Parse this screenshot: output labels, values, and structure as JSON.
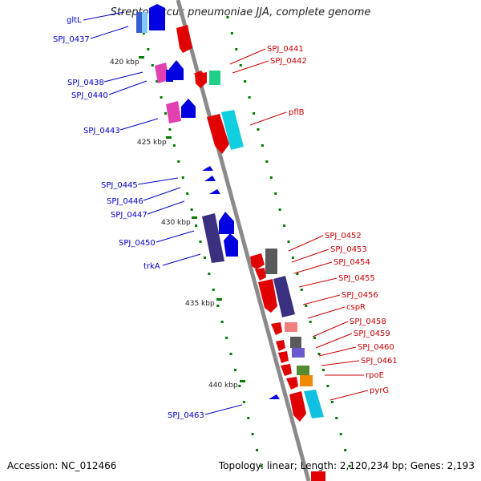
{
  "title": "Streptococcus pneumoniae JJA, complete genome",
  "footer": {
    "accession": "Accession: NC_012466",
    "summary": "Topology: linear; Length: 2,120,234 bp; Genes: 2,193"
  },
  "colors": {
    "left_label": "#0000cc",
    "right_label": "#cc0000",
    "tick": "#007a00",
    "backbone": "#888888"
  },
  "scale_labels": [
    "420 kbp",
    "425 kbp",
    "430 kbp",
    "435 kbp",
    "440 kbp"
  ],
  "left_labels": [
    "gltL",
    "SPJ_0437",
    "SPJ_0438",
    "SPJ_0440",
    "SPJ_0443",
    "SPJ_0445",
    "SPJ_0446",
    "SPJ_0447",
    "SPJ_0450",
    "trkA",
    "SPJ_0463"
  ],
  "right_labels": [
    "SPJ_0441",
    "SPJ_0442",
    "pflB",
    "SPJ_0452",
    "SPJ_0453",
    "SPJ_0454",
    "SPJ_0455",
    "SPJ_0456",
    "cspR",
    "SPJ_0458",
    "SPJ_0459",
    "SPJ_0460",
    "SPJ_0461",
    "rpoE",
    "pyrG"
  ]
}
